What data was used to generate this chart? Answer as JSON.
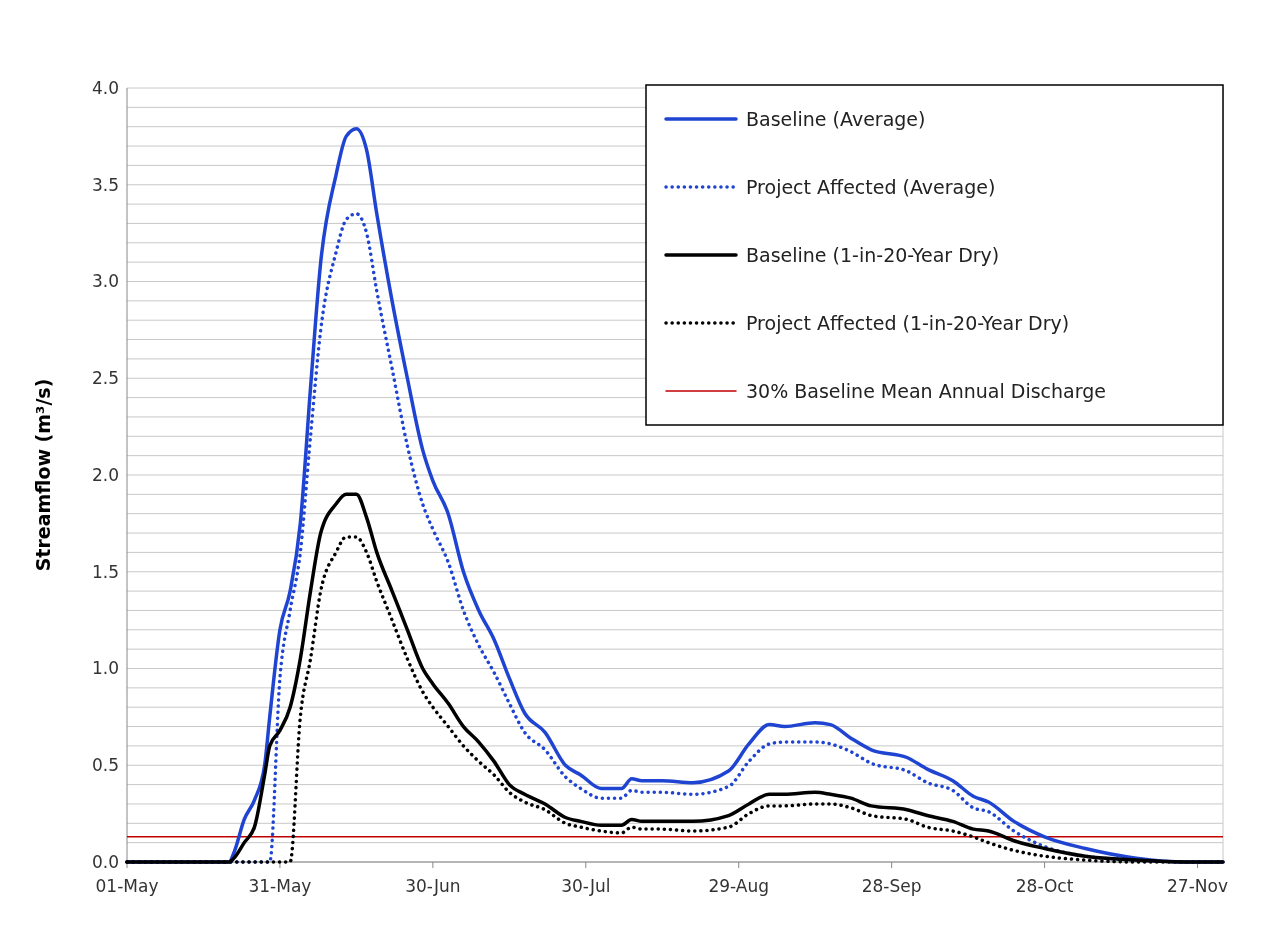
{
  "chart_data": {
    "type": "line",
    "ylabel": "Streamflow (m³/s)",
    "x": [
      "--05-01",
      "--05-21",
      "--05-22",
      "--05-24",
      "--05-26",
      "--05-28",
      "--05-29",
      "--05-31",
      "--06-02",
      "--06-04",
      "--06-06",
      "--06-08",
      "--06-11",
      "--06-13",
      "--06-15",
      "--06-17",
      "--06-19",
      "--06-22",
      "--06-25",
      "--06-28",
      "--06-30",
      "--07-03",
      "--07-06",
      "--07-09",
      "--07-12",
      "--07-15",
      "--07-18",
      "--07-22",
      "--07-26",
      "--07-29",
      "--08-02",
      "--08-06",
      "--08-08",
      "--08-10",
      "--08-14",
      "--08-20",
      "--08-27",
      "--08-31",
      "--09-04",
      "--09-07",
      "--09-13",
      "--09-16",
      "--09-20",
      "--09-24",
      "--10-01",
      "--10-05",
      "--10-10",
      "--10-14",
      "--10-17",
      "--10-22",
      "--10-28",
      "--11-05",
      "--11-15",
      "--11-25",
      "--12-02"
    ],
    "series": [
      {
        "name": "Baseline (Average)",
        "color": "#1f44d1",
        "line_style": "solid",
        "values": [
          0,
          0,
          0.05,
          0.22,
          0.32,
          0.5,
          0.75,
          1.2,
          1.4,
          1.75,
          2.45,
          3.1,
          3.55,
          3.75,
          3.79,
          3.68,
          3.35,
          2.9,
          2.5,
          2.13,
          1.97,
          1.8,
          1.5,
          1.3,
          1.15,
          0.95,
          0.77,
          0.67,
          0.5,
          0.45,
          0.38,
          0.38,
          0.43,
          0.42,
          0.42,
          0.41,
          0.47,
          0.61,
          0.71,
          0.7,
          0.72,
          0.71,
          0.64,
          0.58,
          0.54,
          0.48,
          0.42,
          0.34,
          0.31,
          0.21,
          0.13,
          0.07,
          0.02,
          0,
          0
        ]
      },
      {
        "name": "Project Affected (Average)",
        "color": "#1f44d1",
        "line_style": "dotted",
        "values": [
          0,
          0,
          0,
          0,
          0,
          0,
          0,
          0.95,
          1.3,
          1.6,
          2.2,
          2.75,
          3.15,
          3.32,
          3.35,
          3.25,
          2.95,
          2.55,
          2.15,
          1.85,
          1.72,
          1.55,
          1.3,
          1.12,
          0.98,
          0.82,
          0.67,
          0.58,
          0.44,
          0.38,
          0.33,
          0.33,
          0.37,
          0.36,
          0.36,
          0.35,
          0.39,
          0.52,
          0.61,
          0.62,
          0.62,
          0.61,
          0.57,
          0.51,
          0.47,
          0.41,
          0.37,
          0.28,
          0.26,
          0.16,
          0.08,
          0.03,
          0.01,
          0,
          0
        ]
      },
      {
        "name": "Baseline (1-in-20-Year Dry)",
        "color": "#000000",
        "line_style": "solid",
        "values": [
          0,
          0,
          0.02,
          0.1,
          0.18,
          0.45,
          0.6,
          0.68,
          0.8,
          1.05,
          1.4,
          1.7,
          1.85,
          1.9,
          1.9,
          1.78,
          1.6,
          1.4,
          1.2,
          1.0,
          0.92,
          0.82,
          0.7,
          0.62,
          0.52,
          0.4,
          0.35,
          0.3,
          0.23,
          0.21,
          0.19,
          0.19,
          0.22,
          0.21,
          0.21,
          0.21,
          0.24,
          0.3,
          0.35,
          0.35,
          0.36,
          0.35,
          0.33,
          0.29,
          0.27,
          0.24,
          0.21,
          0.17,
          0.16,
          0.11,
          0.07,
          0.03,
          0.01,
          0,
          0
        ]
      },
      {
        "name": "Project Affected (1-in-20-Year Dry)",
        "color": "#000000",
        "line_style": "dotted",
        "values": [
          0,
          0,
          0,
          0,
          0,
          0,
          0,
          0,
          0,
          0.75,
          1.05,
          1.4,
          1.6,
          1.68,
          1.68,
          1.6,
          1.45,
          1.25,
          1.05,
          0.88,
          0.8,
          0.7,
          0.6,
          0.52,
          0.45,
          0.36,
          0.31,
          0.27,
          0.2,
          0.18,
          0.16,
          0.15,
          0.18,
          0.17,
          0.17,
          0.16,
          0.18,
          0.25,
          0.29,
          0.29,
          0.3,
          0.3,
          0.28,
          0.24,
          0.22,
          0.18,
          0.16,
          0.13,
          0.1,
          0.06,
          0.03,
          0.01,
          0,
          0,
          0
        ]
      }
    ],
    "ref_lines": [
      {
        "axis": "y",
        "value": 0.13,
        "label": "30% Baseline Mean Annual Discharge",
        "color": "#c00000"
      }
    ],
    "xlim": [
      "--05-01",
      "--12-02"
    ],
    "xticks": [
      {
        "value": "--05-01",
        "label": "01-May"
      },
      {
        "value": "--05-31",
        "label": "31-May"
      },
      {
        "value": "--06-30",
        "label": "30-Jun"
      },
      {
        "value": "--07-30",
        "label": "30-Jul"
      },
      {
        "value": "--08-29",
        "label": "29-Aug"
      },
      {
        "value": "--09-28",
        "label": "28-Sep"
      },
      {
        "value": "--10-28",
        "label": "28-Oct"
      },
      {
        "value": "--11-27",
        "label": "27-Nov"
      }
    ],
    "ylim": [
      0,
      4
    ],
    "yticks": [
      {
        "value": 0,
        "label": "0.0"
      },
      {
        "value": 0.1,
        "label": null
      },
      {
        "value": 0.2,
        "label": null
      },
      {
        "value": 0.3,
        "label": null
      },
      {
        "value": 0.4,
        "label": null
      },
      {
        "value": 0.5,
        "label": "0.5"
      },
      {
        "value": 0.6,
        "label": null
      },
      {
        "value": 0.7,
        "label": null
      },
      {
        "value": 0.8,
        "label": null
      },
      {
        "value": 0.9,
        "label": null
      },
      {
        "value": 1,
        "label": "1.0"
      },
      {
        "value": 1.1,
        "label": null
      },
      {
        "value": 1.2,
        "label": null
      },
      {
        "value": 1.3,
        "label": null
      },
      {
        "value": 1.4,
        "label": null
      },
      {
        "value": 1.5,
        "label": "1.5"
      },
      {
        "value": 1.6,
        "label": null
      },
      {
        "value": 1.7,
        "label": null
      },
      {
        "value": 1.8,
        "label": null
      },
      {
        "value": 1.9,
        "label": null
      },
      {
        "value": 2,
        "label": "2.0"
      },
      {
        "value": 2.1,
        "label": null
      },
      {
        "value": 2.2,
        "label": null
      },
      {
        "value": 2.3,
        "label": null
      },
      {
        "value": 2.4,
        "label": null
      },
      {
        "value": 2.5,
        "label": "2.5"
      },
      {
        "value": 2.6,
        "label": null
      },
      {
        "value": 2.7,
        "label": null
      },
      {
        "value": 2.8,
        "label": null
      },
      {
        "value": 2.9,
        "label": null
      },
      {
        "value": 3,
        "label": "3.0"
      },
      {
        "value": 3.1,
        "label": null
      },
      {
        "value": 3.2,
        "label": null
      },
      {
        "value": 3.3,
        "label": null
      },
      {
        "value": 3.4,
        "label": null
      },
      {
        "value": 3.5,
        "label": "3.5"
      },
      {
        "value": 3.6,
        "label": null
      },
      {
        "value": 3.7,
        "label": null
      },
      {
        "value": 3.8,
        "label": null
      },
      {
        "value": 3.9,
        "label": null
      },
      {
        "value": 4,
        "label": "4.0"
      }
    ],
    "grid": "y",
    "legend": "top right",
    "marker": "none"
  }
}
